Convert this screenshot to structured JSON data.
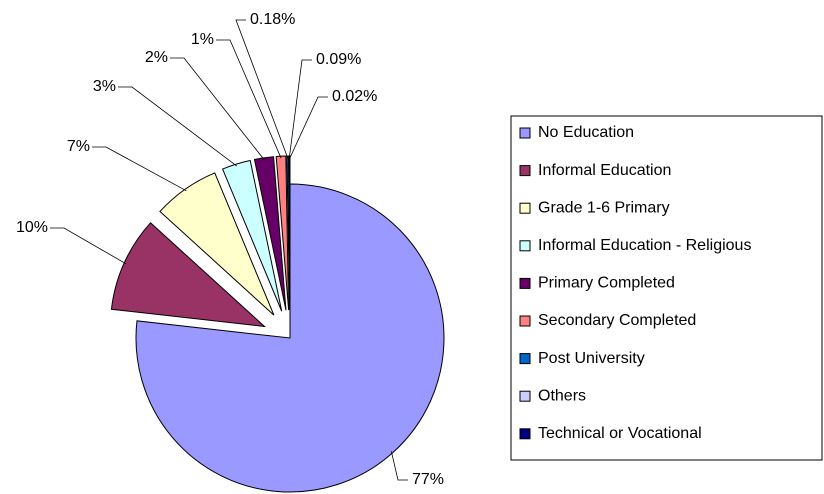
{
  "chart_data": {
    "type": "pie",
    "categories": [
      "No Education",
      "Informal Education",
      "Grade 1-6 Primary",
      "Informal Education - Religious",
      "Primary Completed",
      "Secondary Completed",
      "Post University",
      "Others",
      "Technical or Vocational"
    ],
    "values": [
      77,
      10,
      7,
      3,
      2,
      1,
      0.18,
      0.09,
      0.02
    ],
    "value_labels": [
      "77%",
      "10%",
      "7%",
      "3%",
      "2%",
      "1%",
      "0.18%",
      "0.09%",
      "0.02%"
    ],
    "colors": [
      "#9999ff",
      "#993366",
      "#ffffcc",
      "#ccffff",
      "#660066",
      "#ff8080",
      "#0066cc",
      "#ccccff",
      "#000080"
    ],
    "legend": "right"
  }
}
